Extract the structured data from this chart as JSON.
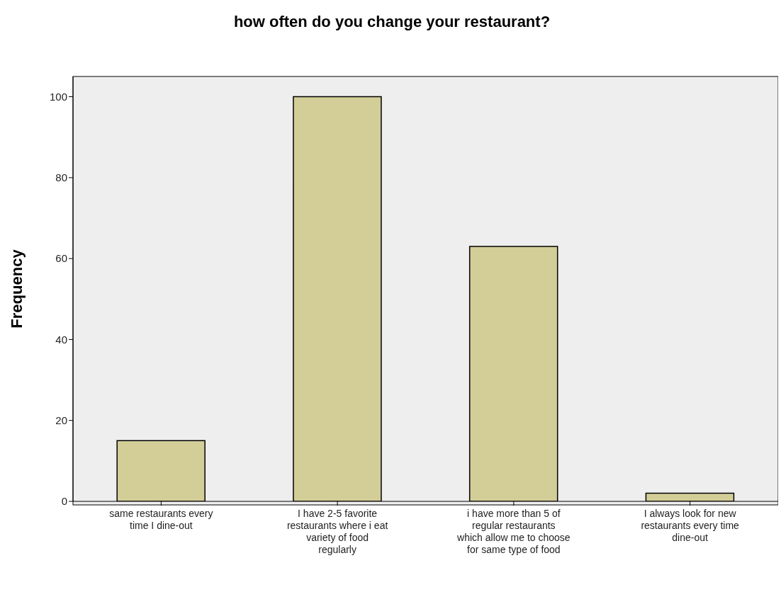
{
  "chart_data": {
    "type": "bar",
    "title": "how often do you change your restaurant?",
    "ylabel": "Frequency",
    "categories": [
      "same restaurants every time I dine-out",
      "I have 2-5 favorite restaurants where i eat variety of food regularly",
      "i have more than 5 of regular restaurants which allow me to choose for same type of food",
      "I always look for new restaurants every time dine-out"
    ],
    "values": [
      15,
      100,
      63,
      2
    ],
    "color": "#d3ce98",
    "ylim": [
      0,
      105
    ],
    "yticks": [
      0,
      20,
      40,
      60,
      80,
      100
    ],
    "grid": false,
    "legend": false
  }
}
